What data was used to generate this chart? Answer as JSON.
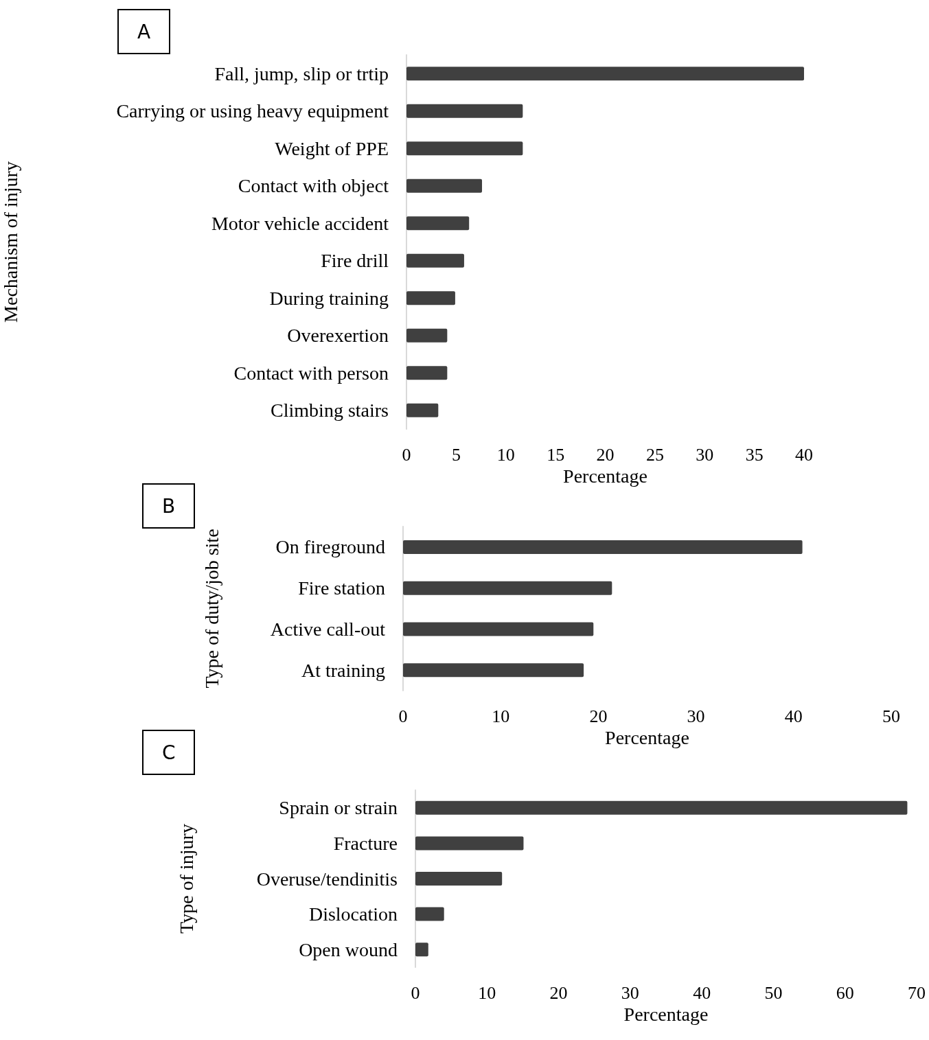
{
  "chart_data": [
    {
      "type": "bar",
      "orientation": "horizontal",
      "annotations": [
        "A"
      ],
      "xlabel": "Percentage",
      "ylabel": "Mechanism of injury",
      "categories": [
        "Fall, jump, slip or trtip",
        "Carrying or using heavy equipment",
        "Weight of PPE",
        "Contact with object",
        "Motor vehicle accident",
        "Fire drill",
        "During training",
        "Overexertion",
        "Contact with person",
        "Climbing stairs"
      ],
      "values": [
        40,
        11.7,
        11.7,
        7.6,
        6.3,
        5.8,
        4.9,
        4.1,
        4.1,
        3.2
      ],
      "color": "#404040",
      "xlim": [
        0,
        40
      ],
      "xticks": [
        0,
        5,
        10,
        15,
        20,
        25,
        30,
        35,
        40
      ],
      "grid": false
    },
    {
      "type": "bar",
      "orientation": "horizontal",
      "annotations": [
        "B"
      ],
      "xlabel": "Percentage",
      "ylabel": "Type of duty/job site",
      "categories": [
        "On fireground",
        "Fire station",
        "Active call-out",
        "At training"
      ],
      "values": [
        40.9,
        21.4,
        19.5,
        18.5
      ],
      "color": "#404040",
      "xlim": [
        0,
        50
      ],
      "xticks": [
        0,
        10,
        20,
        30,
        40,
        50
      ],
      "grid": false
    },
    {
      "type": "bar",
      "orientation": "horizontal",
      "annotations": [
        "C"
      ],
      "xlabel": "Percentage",
      "ylabel": "Type of injury",
      "categories": [
        "Sprain or strain",
        "Fracture",
        "Overuse/tendinitis",
        "Dislocation",
        "Open wound"
      ],
      "values": [
        68.7,
        15.1,
        12.1,
        4.0,
        1.8
      ],
      "color": "#404040",
      "xlim": [
        0,
        70
      ],
      "xticks": [
        0,
        10,
        20,
        30,
        40,
        50,
        60,
        70
      ],
      "grid": false
    }
  ]
}
